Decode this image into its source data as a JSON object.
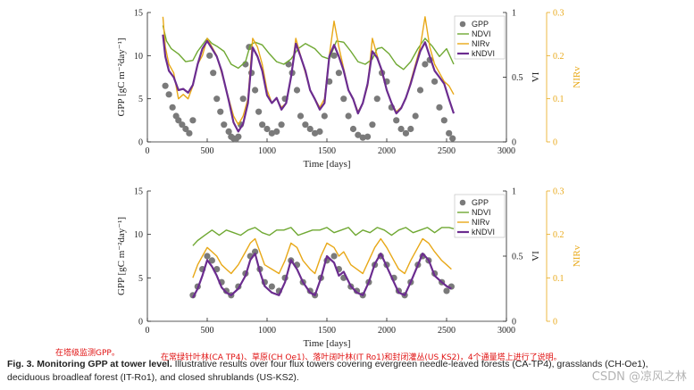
{
  "chart_data": [
    {
      "type": "line",
      "xlabel": "Time [days]",
      "ylabel": "GPP [gC m⁻²day⁻¹]",
      "y2label": "VI",
      "y3label": "NIRv",
      "xlim": [
        0,
        3000
      ],
      "ylim": [
        0,
        15
      ],
      "y2lim": [
        0,
        1
      ],
      "y3lim": [
        0,
        0.3
      ],
      "xticks": [
        "0",
        "500",
        "1000",
        "1500",
        "2000",
        "2500",
        "3000"
      ],
      "yticks": [
        "0",
        "5",
        "10",
        "15"
      ],
      "y2ticks": [
        "0",
        "0.5",
        "1"
      ],
      "y3ticks": [
        "0",
        "0.1",
        "0.2",
        "0.3"
      ],
      "legend_position": "top-right",
      "series": [
        {
          "name": "GPP",
          "kind": "scatter",
          "color": "#7a7a7a",
          "x": [
            150,
            180,
            210,
            240,
            260,
            290,
            320,
            350,
            380,
            520,
            550,
            580,
            610,
            640,
            680,
            700,
            720,
            740,
            760,
            780,
            800,
            820,
            850,
            870,
            900,
            930,
            960,
            1000,
            1040,
            1080,
            1120,
            1150,
            1180,
            1210,
            1250,
            1280,
            1320,
            1360,
            1400,
            1440,
            1480,
            1520,
            1560,
            1600,
            1640,
            1680,
            1720,
            1760,
            1800,
            1840,
            1880,
            1920,
            1960,
            2000,
            2040,
            2080,
            2120,
            2160,
            2200,
            2240,
            2280,
            2320,
            2360,
            2400,
            2440,
            2480,
            2520,
            2550
          ],
          "y": [
            6.5,
            5.5,
            4.0,
            3.0,
            2.5,
            2.0,
            1.5,
            1.0,
            2.5,
            10.0,
            8.0,
            5.0,
            3.5,
            2.0,
            1.2,
            0.6,
            0.4,
            0.3,
            0.6,
            2.0,
            5.0,
            9.0,
            11.0,
            8.0,
            6.0,
            3.5,
            2.0,
            1.5,
            1.0,
            1.2,
            2.0,
            5.0,
            9.0,
            8.0,
            6.0,
            3.0,
            2.0,
            1.5,
            1.0,
            1.2,
            3.0,
            7.0,
            10.0,
            8.0,
            5.0,
            3.0,
            1.5,
            0.8,
            0.5,
            0.6,
            2.0,
            5.0,
            8.0,
            7.0,
            4.0,
            2.5,
            1.5,
            1.0,
            1.5,
            3.0,
            6.0,
            9.0,
            9.5,
            7.0,
            4.0,
            2.5,
            1.0,
            0.4
          ]
        },
        {
          "name": "NDVI",
          "axis": "VI",
          "color": "#6fa832",
          "x": [
            130,
            160,
            200,
            260,
            320,
            380,
            420,
            460,
            500,
            540,
            580,
            640,
            700,
            760,
            820,
            860,
            900,
            960,
            1020,
            1080,
            1140,
            1200,
            1260,
            1320,
            1400,
            1460,
            1520,
            1580,
            1640,
            1700,
            1760,
            1820,
            1880,
            1920,
            1960,
            2020,
            2080,
            2140,
            2200,
            2260,
            2320,
            2380,
            2440,
            2500,
            2560
          ],
          "y": [
            0.9,
            0.78,
            0.72,
            0.68,
            0.62,
            0.63,
            0.7,
            0.75,
            0.8,
            0.76,
            0.74,
            0.7,
            0.6,
            0.57,
            0.62,
            0.75,
            0.77,
            0.75,
            0.68,
            0.62,
            0.6,
            0.64,
            0.72,
            0.76,
            0.72,
            0.66,
            0.64,
            0.78,
            0.77,
            0.7,
            0.62,
            0.6,
            0.64,
            0.72,
            0.73,
            0.68,
            0.6,
            0.56,
            0.62,
            0.72,
            0.8,
            0.74,
            0.66,
            0.72,
            0.6
          ]
        },
        {
          "name": "NIRv",
          "axis": "NIRv",
          "color": "#e8a817",
          "x": [
            130,
            150,
            180,
            220,
            260,
            300,
            340,
            380,
            420,
            460,
            500,
            540,
            580,
            620,
            680,
            720,
            760,
            800,
            840,
            880,
            920,
            960,
            1000,
            1040,
            1080,
            1120,
            1160,
            1200,
            1240,
            1280,
            1320,
            1360,
            1400,
            1440,
            1480,
            1520,
            1560,
            1600,
            1640,
            1680,
            1720,
            1760,
            1800,
            1840,
            1880,
            1920,
            1960,
            2000,
            2040,
            2080,
            2120,
            2160,
            2200,
            2240,
            2280,
            2320,
            2360,
            2400,
            2440,
            2480,
            2520,
            2560
          ],
          "y": [
            0.29,
            0.22,
            0.18,
            0.16,
            0.1,
            0.11,
            0.1,
            0.13,
            0.18,
            0.2,
            0.24,
            0.22,
            0.2,
            0.16,
            0.1,
            0.06,
            0.04,
            0.06,
            0.1,
            0.24,
            0.22,
            0.18,
            0.12,
            0.09,
            0.1,
            0.08,
            0.09,
            0.15,
            0.24,
            0.2,
            0.16,
            0.12,
            0.1,
            0.08,
            0.1,
            0.2,
            0.28,
            0.22,
            0.17,
            0.12,
            0.1,
            0.07,
            0.09,
            0.13,
            0.24,
            0.2,
            0.16,
            0.12,
            0.09,
            0.07,
            0.08,
            0.1,
            0.14,
            0.18,
            0.22,
            0.29,
            0.22,
            0.18,
            0.16,
            0.14,
            0.13,
            0.11
          ]
        },
        {
          "name": "kNDVI",
          "axis": "VI",
          "color": "#6b2c8f",
          "x": [
            130,
            150,
            180,
            220,
            260,
            300,
            340,
            380,
            420,
            460,
            500,
            540,
            580,
            620,
            680,
            720,
            760,
            800,
            840,
            880,
            920,
            960,
            1000,
            1040,
            1080,
            1120,
            1160,
            1200,
            1240,
            1280,
            1320,
            1360,
            1400,
            1440,
            1480,
            1520,
            1560,
            1600,
            1640,
            1680,
            1720,
            1760,
            1800,
            1840,
            1880,
            1920,
            1960,
            2000,
            2040,
            2080,
            2120,
            2160,
            2200,
            2240,
            2280,
            2320,
            2360,
            2400,
            2440,
            2480,
            2520,
            2560
          ],
          "y": [
            0.83,
            0.66,
            0.55,
            0.5,
            0.4,
            0.41,
            0.38,
            0.44,
            0.6,
            0.72,
            0.78,
            0.72,
            0.66,
            0.55,
            0.32,
            0.15,
            0.08,
            0.14,
            0.3,
            0.73,
            0.66,
            0.55,
            0.36,
            0.3,
            0.34,
            0.25,
            0.3,
            0.5,
            0.76,
            0.66,
            0.55,
            0.4,
            0.33,
            0.25,
            0.3,
            0.66,
            0.75,
            0.66,
            0.55,
            0.4,
            0.33,
            0.22,
            0.3,
            0.45,
            0.7,
            0.65,
            0.55,
            0.4,
            0.3,
            0.22,
            0.26,
            0.34,
            0.45,
            0.58,
            0.7,
            0.77,
            0.66,
            0.55,
            0.5,
            0.45,
            0.33,
            0.22
          ]
        }
      ]
    },
    {
      "type": "line",
      "xlabel": "Time [days]",
      "ylabel": "GPP [gC m⁻²day⁻¹]",
      "y2label": "VI",
      "y3label": "NIRv",
      "xlim": [
        0,
        3000
      ],
      "ylim": [
        0,
        15
      ],
      "y2lim": [
        0,
        1
      ],
      "y3lim": [
        0,
        0.3
      ],
      "xticks": [
        "0",
        "500",
        "1000",
        "1500",
        "2000",
        "2500",
        "3000"
      ],
      "yticks": [
        "0",
        "5",
        "10",
        "15"
      ],
      "y2ticks": [
        "0",
        "0.5",
        "1"
      ],
      "y3ticks": [
        "0",
        "0.1",
        "0.2",
        "0.3"
      ],
      "legend_position": "top-right",
      "series": [
        {
          "name": "GPP",
          "kind": "scatter",
          "color": "#7a7a7a",
          "x": [
            380,
            420,
            460,
            500,
            540,
            580,
            620,
            660,
            700,
            760,
            820,
            860,
            900,
            940,
            980,
            1040,
            1100,
            1150,
            1200,
            1250,
            1300,
            1360,
            1400,
            1450,
            1500,
            1560,
            1600,
            1640,
            1700,
            1750,
            1800,
            1850,
            1900,
            1950,
            2000,
            2060,
            2100,
            2150,
            2200,
            2260,
            2300,
            2350,
            2400,
            2460,
            2500,
            2540
          ],
          "y": [
            3.0,
            4.0,
            6.0,
            7.5,
            7.0,
            6.0,
            4.5,
            3.5,
            3.0,
            4.0,
            5.5,
            7.5,
            8.0,
            6.0,
            4.5,
            4.0,
            3.5,
            5.0,
            7.0,
            6.5,
            4.5,
            3.5,
            3.0,
            5.0,
            7.0,
            7.5,
            6.0,
            5.0,
            4.0,
            3.5,
            3.0,
            4.5,
            6.5,
            7.5,
            6.5,
            5.0,
            3.5,
            3.0,
            4.5,
            6.5,
            7.5,
            7.0,
            5.5,
            4.5,
            3.5,
            4.0
          ]
        },
        {
          "name": "NDVI",
          "axis": "VI",
          "color": "#6fa832",
          "x": [
            380,
            420,
            480,
            540,
            600,
            660,
            720,
            780,
            840,
            900,
            960,
            1020,
            1080,
            1140,
            1200,
            1260,
            1320,
            1380,
            1440,
            1500,
            1560,
            1620,
            1680,
            1740,
            1800,
            1860,
            1920,
            1980,
            2040,
            2100,
            2160,
            2220,
            2280,
            2340,
            2400,
            2460,
            2520,
            2560
          ],
          "y": [
            0.58,
            0.62,
            0.66,
            0.7,
            0.66,
            0.7,
            0.68,
            0.66,
            0.7,
            0.72,
            0.68,
            0.66,
            0.7,
            0.7,
            0.72,
            0.66,
            0.68,
            0.7,
            0.7,
            0.72,
            0.68,
            0.7,
            0.72,
            0.66,
            0.7,
            0.68,
            0.72,
            0.7,
            0.66,
            0.7,
            0.72,
            0.68,
            0.7,
            0.72,
            0.68,
            0.72,
            0.72,
            0.71
          ]
        },
        {
          "name": "NIRv",
          "axis": "NIRv",
          "color": "#e8a817",
          "x": [
            380,
            420,
            460,
            500,
            540,
            580,
            620,
            660,
            700,
            760,
            820,
            860,
            900,
            940,
            980,
            1040,
            1100,
            1150,
            1200,
            1250,
            1300,
            1360,
            1400,
            1450,
            1500,
            1560,
            1600,
            1640,
            1700,
            1750,
            1800,
            1850,
            1900,
            1950,
            2000,
            2060,
            2100,
            2150,
            2200,
            2260,
            2300,
            2350,
            2400,
            2460,
            2500,
            2540
          ],
          "y": [
            0.1,
            0.13,
            0.15,
            0.17,
            0.16,
            0.15,
            0.13,
            0.12,
            0.11,
            0.13,
            0.16,
            0.18,
            0.19,
            0.16,
            0.13,
            0.12,
            0.11,
            0.14,
            0.18,
            0.17,
            0.14,
            0.12,
            0.11,
            0.15,
            0.18,
            0.17,
            0.15,
            0.16,
            0.13,
            0.12,
            0.11,
            0.14,
            0.17,
            0.19,
            0.17,
            0.14,
            0.12,
            0.11,
            0.14,
            0.17,
            0.19,
            0.18,
            0.16,
            0.14,
            0.13,
            0.12
          ]
        },
        {
          "name": "kNDVI",
          "axis": "VI",
          "color": "#6b2c8f",
          "x": [
            380,
            420,
            460,
            500,
            540,
            580,
            620,
            660,
            700,
            760,
            820,
            860,
            900,
            940,
            980,
            1040,
            1100,
            1150,
            1200,
            1250,
            1300,
            1360,
            1400,
            1450,
            1500,
            1560,
            1600,
            1640,
            1700,
            1750,
            1800,
            1850,
            1900,
            1950,
            2000,
            2060,
            2100,
            2150,
            2200,
            2260,
            2300,
            2350,
            2400,
            2460,
            2500,
            2540
          ],
          "y": [
            0.18,
            0.25,
            0.35,
            0.47,
            0.42,
            0.35,
            0.26,
            0.22,
            0.2,
            0.25,
            0.35,
            0.47,
            0.52,
            0.38,
            0.27,
            0.22,
            0.2,
            0.3,
            0.47,
            0.4,
            0.3,
            0.22,
            0.2,
            0.33,
            0.5,
            0.45,
            0.35,
            0.38,
            0.27,
            0.22,
            0.2,
            0.3,
            0.44,
            0.52,
            0.42,
            0.3,
            0.22,
            0.2,
            0.3,
            0.43,
            0.52,
            0.47,
            0.35,
            0.3,
            0.27,
            0.25
          ]
        }
      ]
    }
  ],
  "notes": [
    "在塔级监测GPP。",
    "在常绿针叶林(CA TP4)、草原(CH Oe1)、落叶阔叶林(IT Ro1)和封闭灌丛(US KS2)，4个通量塔上进行了说明。"
  ],
  "caption": {
    "label": "Fig. 3. Monitoring GPP at tower level.",
    "text": " Illustrative results over four flux towers covering evergreen needle-leaved forests (CA-TP4), grasslands (CH-Oe1), deciduous broadleaf forest (IT-Ro1), and closed shrublands (US-KS2)."
  },
  "watermark": "CSDN @凉风之林"
}
